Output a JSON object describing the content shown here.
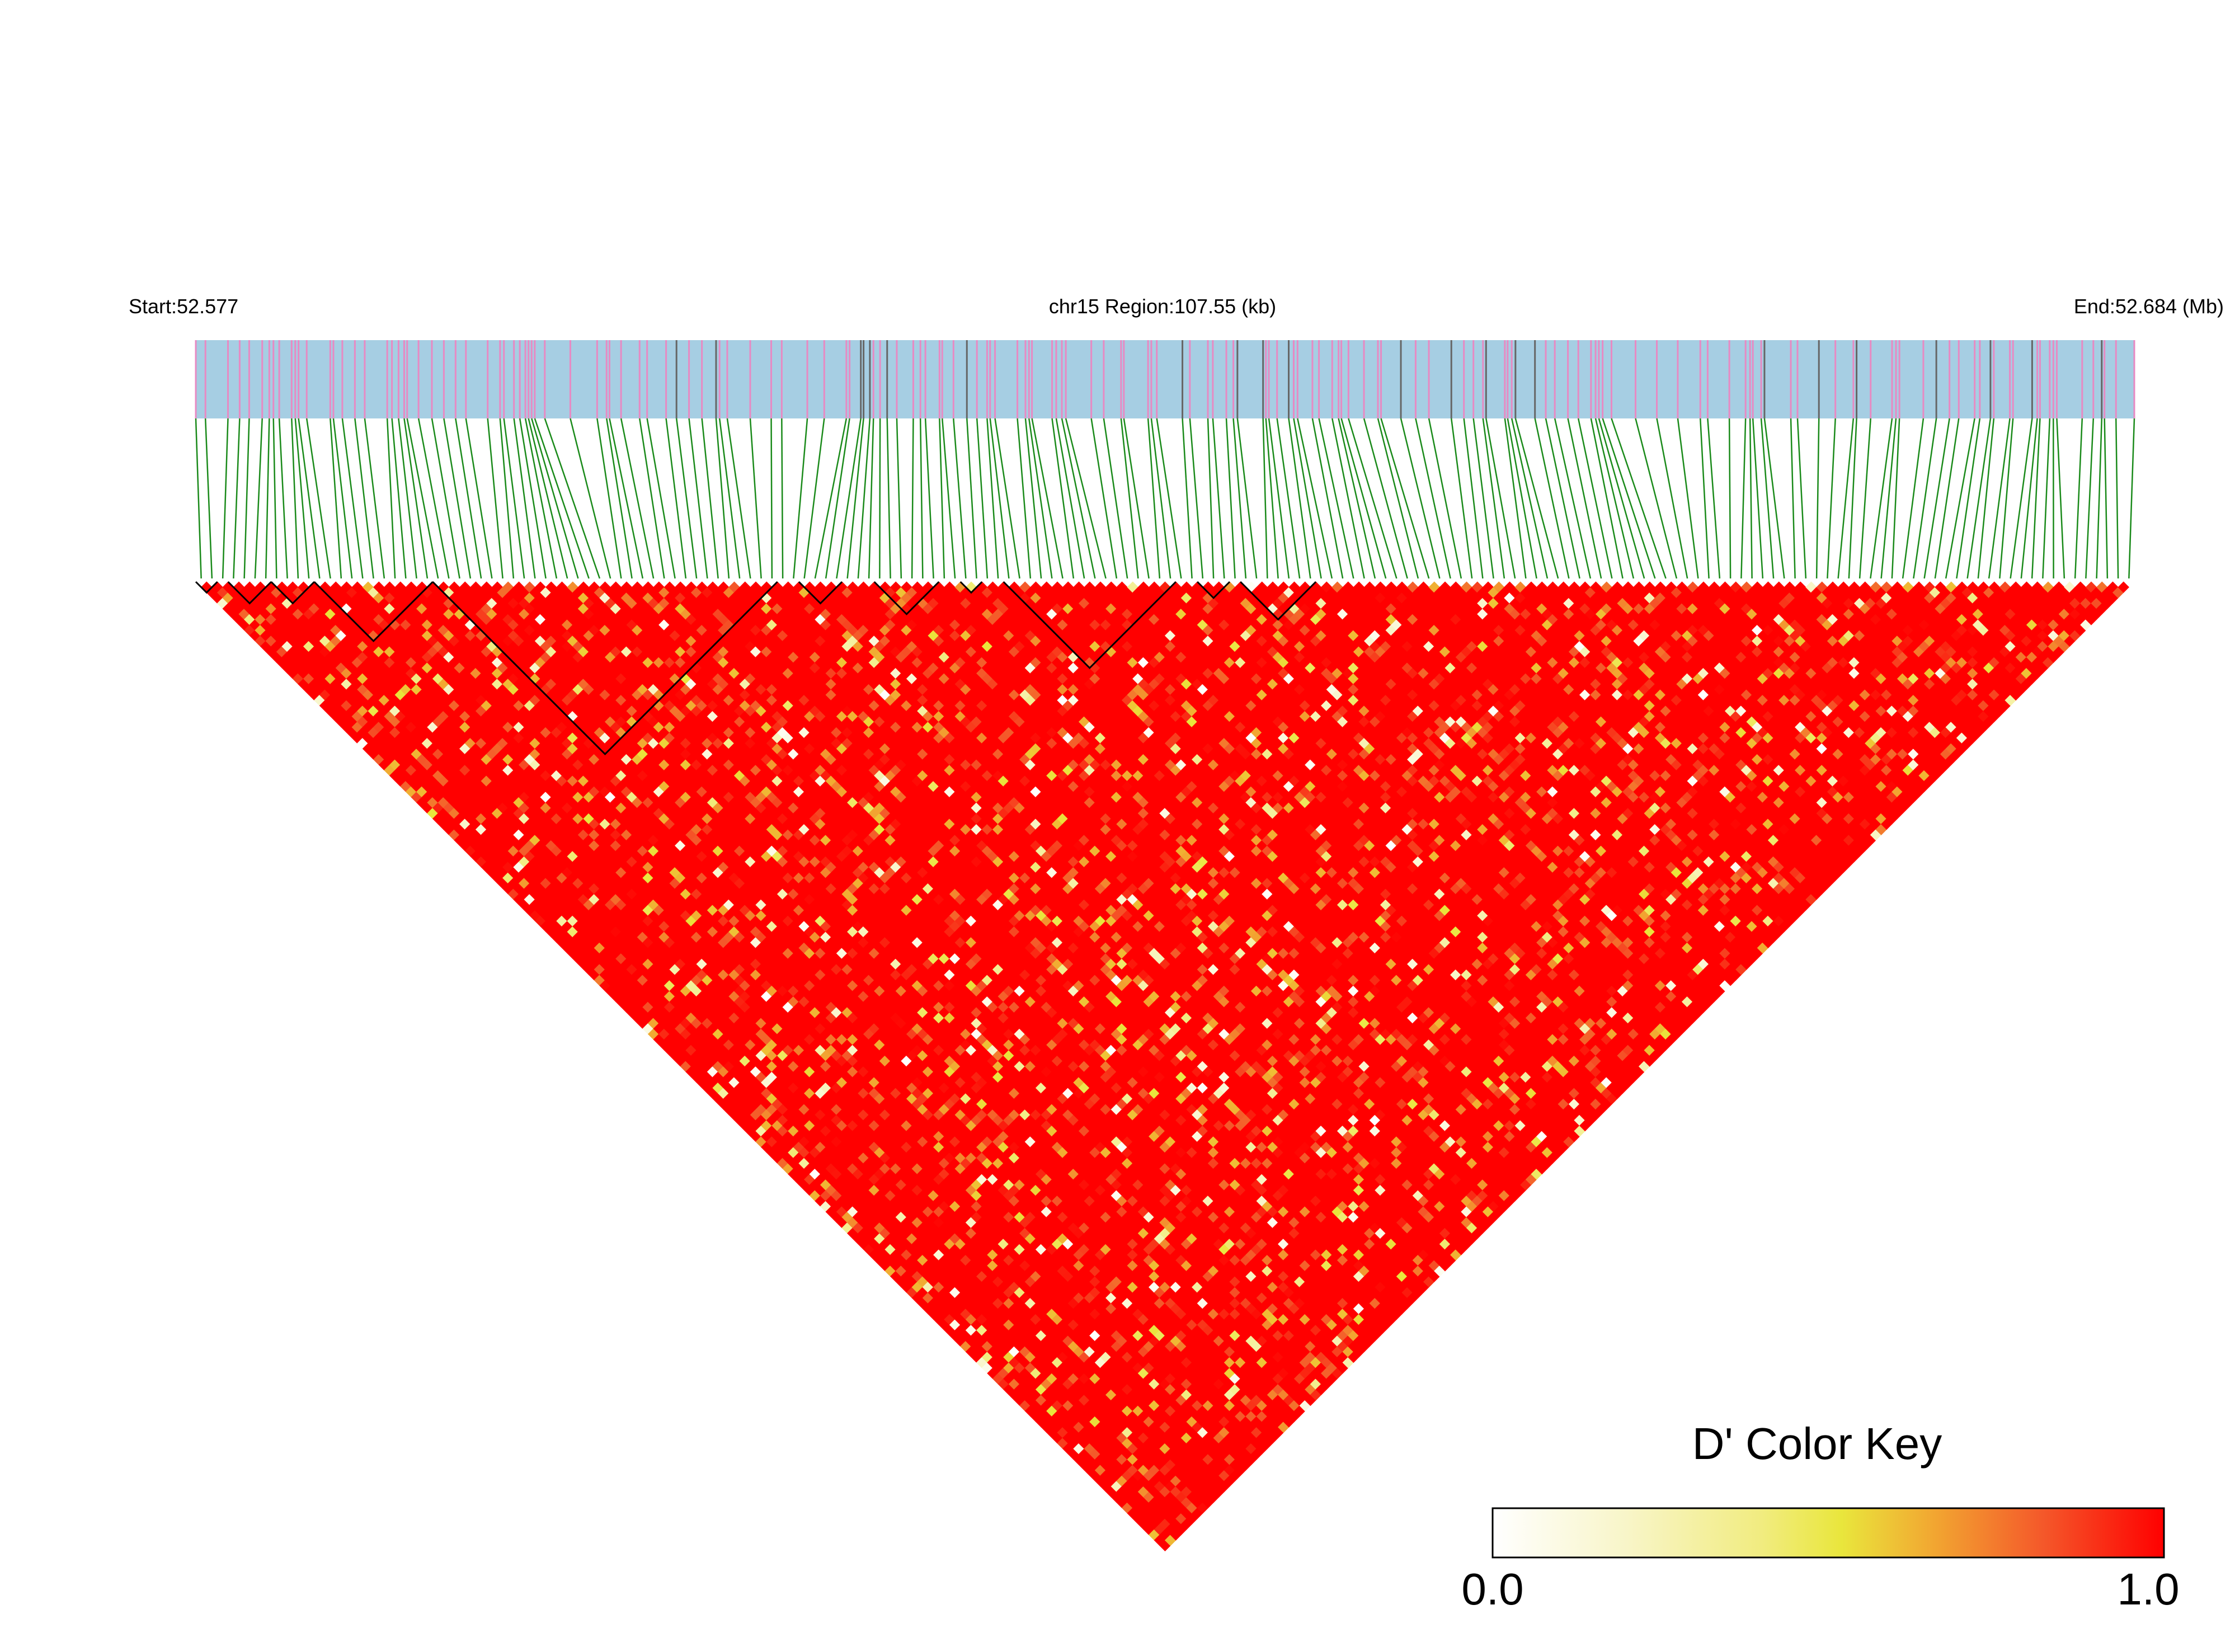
{
  "header": {
    "start_label": "Start:52.577",
    "region_label": "chr15 Region:107.55 (kb)",
    "end_label": "End:52.684 (Mb)"
  },
  "legend": {
    "title": "D' Color Key",
    "min_label": "0.0",
    "max_label": "1.0"
  },
  "chart_data": {
    "type": "heatmap",
    "subtype": "LD triangle (D')",
    "chromosome": "chr15",
    "region_start_mb": 52.577,
    "region_end_mb": 52.684,
    "region_span_kb": 107.55,
    "n_snps": 180,
    "value_range": [
      0,
      1
    ],
    "dominant_value": 1.0,
    "ld_blocks_snp_ranges": [
      [
        1,
        2
      ],
      [
        4,
        7
      ],
      [
        8,
        11
      ],
      [
        12,
        22
      ],
      [
        23,
        54
      ],
      [
        57,
        60
      ],
      [
        64,
        69
      ],
      [
        72,
        73
      ],
      [
        76,
        91
      ],
      [
        94,
        96
      ],
      [
        98,
        104
      ]
    ],
    "colors": {
      "track_fill": "#a6cee3",
      "snp_marker_primary": "#e78ac3",
      "snp_marker_secondary": "#666666",
      "connector": "#1a8a1a",
      "block_outline": "#000000",
      "color_scale": [
        "#ffffff",
        "#f6f2a8",
        "#ebe845",
        "#f2a531",
        "#f4582a",
        "#ff0000"
      ]
    },
    "legend_placement": "bottom-right"
  }
}
